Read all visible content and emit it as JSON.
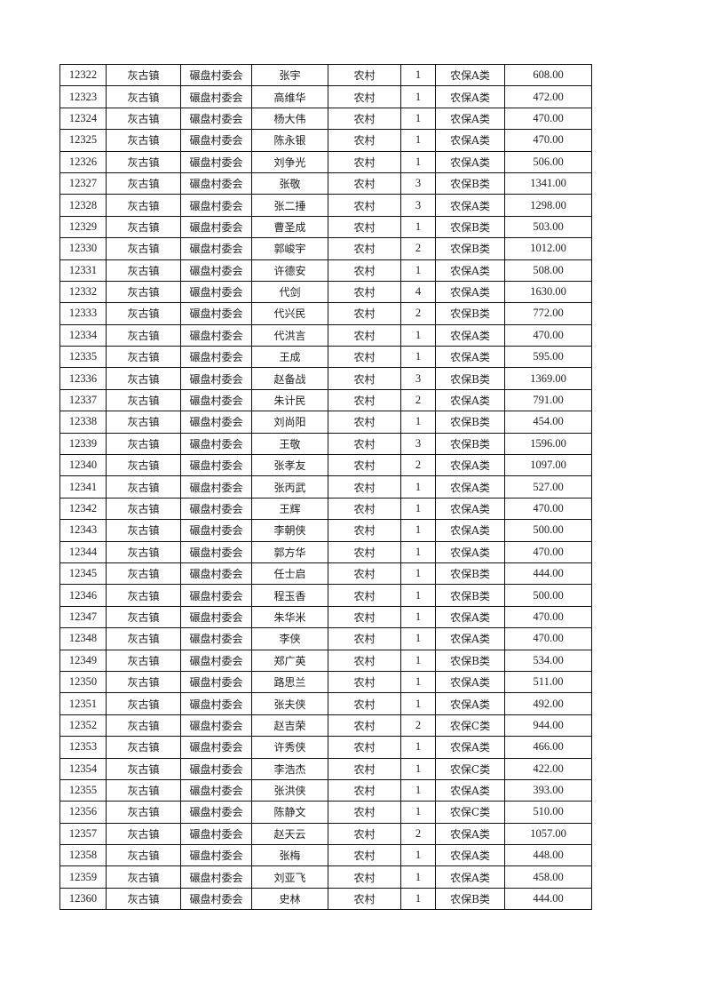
{
  "table": {
    "rows": [
      [
        "12322",
        "灰古镇",
        "碾盘村委会",
        "张宇",
        "农村",
        "1",
        "农保A类",
        "608.00"
      ],
      [
        "12323",
        "灰古镇",
        "碾盘村委会",
        "高维华",
        "农村",
        "1",
        "农保A类",
        "472.00"
      ],
      [
        "12324",
        "灰古镇",
        "碾盘村委会",
        "杨大伟",
        "农村",
        "1",
        "农保A类",
        "470.00"
      ],
      [
        "12325",
        "灰古镇",
        "碾盘村委会",
        "陈永银",
        "农村",
        "1",
        "农保A类",
        "470.00"
      ],
      [
        "12326",
        "灰古镇",
        "碾盘村委会",
        "刘争光",
        "农村",
        "1",
        "农保A类",
        "506.00"
      ],
      [
        "12327",
        "灰古镇",
        "碾盘村委会",
        "张敬",
        "农村",
        "3",
        "农保B类",
        "1341.00"
      ],
      [
        "12328",
        "灰古镇",
        "碾盘村委会",
        "张二捶",
        "农村",
        "3",
        "农保A类",
        "1298.00"
      ],
      [
        "12329",
        "灰古镇",
        "碾盘村委会",
        "曹圣成",
        "农村",
        "1",
        "农保B类",
        "503.00"
      ],
      [
        "12330",
        "灰古镇",
        "碾盘村委会",
        "郭峻宇",
        "农村",
        "2",
        "农保B类",
        "1012.00"
      ],
      [
        "12331",
        "灰古镇",
        "碾盘村委会",
        "许德安",
        "农村",
        "1",
        "农保A类",
        "508.00"
      ],
      [
        "12332",
        "灰古镇",
        "碾盘村委会",
        "代剑",
        "农村",
        "4",
        "农保A类",
        "1630.00"
      ],
      [
        "12333",
        "灰古镇",
        "碾盘村委会",
        "代兴民",
        "农村",
        "2",
        "农保B类",
        "772.00"
      ],
      [
        "12334",
        "灰古镇",
        "碾盘村委会",
        "代洪言",
        "农村",
        "1",
        "农保A类",
        "470.00"
      ],
      [
        "12335",
        "灰古镇",
        "碾盘村委会",
        "王成",
        "农村",
        "1",
        "农保A类",
        "595.00"
      ],
      [
        "12336",
        "灰古镇",
        "碾盘村委会",
        "赵备战",
        "农村",
        "3",
        "农保B类",
        "1369.00"
      ],
      [
        "12337",
        "灰古镇",
        "碾盘村委会",
        "朱计民",
        "农村",
        "2",
        "农保A类",
        "791.00"
      ],
      [
        "12338",
        "灰古镇",
        "碾盘村委会",
        "刘尚阳",
        "农村",
        "1",
        "农保B类",
        "454.00"
      ],
      [
        "12339",
        "灰古镇",
        "碾盘村委会",
        "王敬",
        "农村",
        "3",
        "农保B类",
        "1596.00"
      ],
      [
        "12340",
        "灰古镇",
        "碾盘村委会",
        "张孝友",
        "农村",
        "2",
        "农保A类",
        "1097.00"
      ],
      [
        "12341",
        "灰古镇",
        "碾盘村委会",
        "张丙武",
        "农村",
        "1",
        "农保A类",
        "527.00"
      ],
      [
        "12342",
        "灰古镇",
        "碾盘村委会",
        "王辉",
        "农村",
        "1",
        "农保A类",
        "470.00"
      ],
      [
        "12343",
        "灰古镇",
        "碾盘村委会",
        "李朝侠",
        "农村",
        "1",
        "农保A类",
        "500.00"
      ],
      [
        "12344",
        "灰古镇",
        "碾盘村委会",
        "郭方华",
        "农村",
        "1",
        "农保A类",
        "470.00"
      ],
      [
        "12345",
        "灰古镇",
        "碾盘村委会",
        "任士启",
        "农村",
        "1",
        "农保B类",
        "444.00"
      ],
      [
        "12346",
        "灰古镇",
        "碾盘村委会",
        "程玉香",
        "农村",
        "1",
        "农保B类",
        "500.00"
      ],
      [
        "12347",
        "灰古镇",
        "碾盘村委会",
        "朱华米",
        "农村",
        "1",
        "农保A类",
        "470.00"
      ],
      [
        "12348",
        "灰古镇",
        "碾盘村委会",
        "李侠",
        "农村",
        "1",
        "农保A类",
        "470.00"
      ],
      [
        "12349",
        "灰古镇",
        "碾盘村委会",
        "郑广英",
        "农村",
        "1",
        "农保B类",
        "534.00"
      ],
      [
        "12350",
        "灰古镇",
        "碾盘村委会",
        "路思兰",
        "农村",
        "1",
        "农保A类",
        "511.00"
      ],
      [
        "12351",
        "灰古镇",
        "碾盘村委会",
        "张夫侠",
        "农村",
        "1",
        "农保A类",
        "492.00"
      ],
      [
        "12352",
        "灰古镇",
        "碾盘村委会",
        "赵吉荣",
        "农村",
        "2",
        "农保C类",
        "944.00"
      ],
      [
        "12353",
        "灰古镇",
        "碾盘村委会",
        "许秀侠",
        "农村",
        "1",
        "农保A类",
        "466.00"
      ],
      [
        "12354",
        "灰古镇",
        "碾盘村委会",
        "李浩杰",
        "农村",
        "1",
        "农保C类",
        "422.00"
      ],
      [
        "12355",
        "灰古镇",
        "碾盘村委会",
        "张洪侠",
        "农村",
        "1",
        "农保A类",
        "393.00"
      ],
      [
        "12356",
        "灰古镇",
        "碾盘村委会",
        "陈静文",
        "农村",
        "1",
        "农保C类",
        "510.00"
      ],
      [
        "12357",
        "灰古镇",
        "碾盘村委会",
        "赵天云",
        "农村",
        "2",
        "农保A类",
        "1057.00"
      ],
      [
        "12358",
        "灰古镇",
        "碾盘村委会",
        "张梅",
        "农村",
        "1",
        "农保A类",
        "448.00"
      ],
      [
        "12359",
        "灰古镇",
        "碾盘村委会",
        "刘亚飞",
        "农村",
        "1",
        "农保A类",
        "458.00"
      ],
      [
        "12360",
        "灰古镇",
        "碾盘村委会",
        "史林",
        "农村",
        "1",
        "农保B类",
        "444.00"
      ]
    ]
  }
}
